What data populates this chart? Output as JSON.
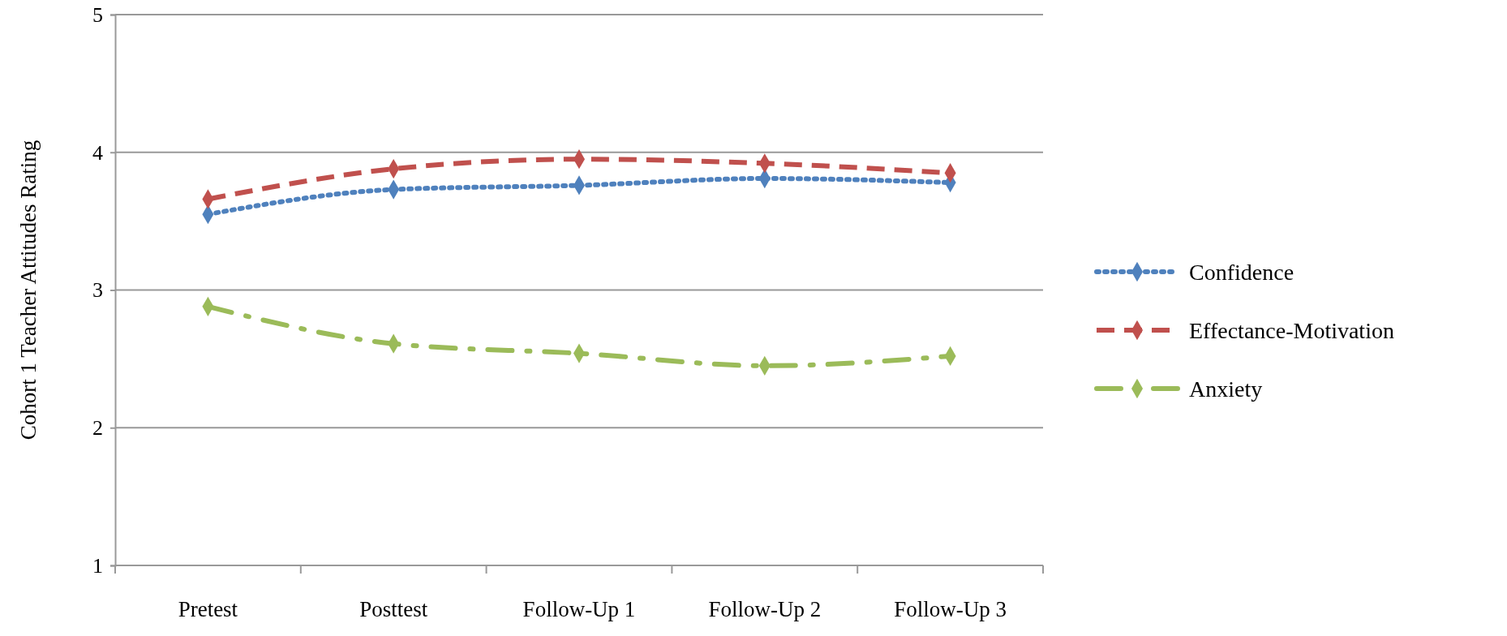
{
  "chart_data": {
    "type": "line",
    "ylabel": "Cohort 1 Teacher Attitudes Rating",
    "categories": [
      "Pretest",
      "Posttest",
      "Follow-Up 1",
      "Follow-Up 2",
      "Follow-Up 3"
    ],
    "series": [
      {
        "name": "Confidence",
        "color": "#4f81bd",
        "line_style": "dotted",
        "values": [
          3.55,
          3.73,
          3.76,
          3.81,
          3.78
        ]
      },
      {
        "name": "Effectance-Motivation",
        "color": "#c0504d",
        "line_style": "dashed",
        "values": [
          3.66,
          3.88,
          3.95,
          3.92,
          3.85
        ]
      },
      {
        "name": "Anxiety",
        "color": "#9bbb59",
        "line_style": "dashdot",
        "values": [
          2.88,
          2.61,
          2.54,
          2.45,
          2.52
        ]
      }
    ],
    "ylim": [
      1,
      5
    ],
    "yticks": [
      1,
      2,
      3,
      4,
      5
    ],
    "grid": "y",
    "legend": "right",
    "marker": "diamond"
  }
}
